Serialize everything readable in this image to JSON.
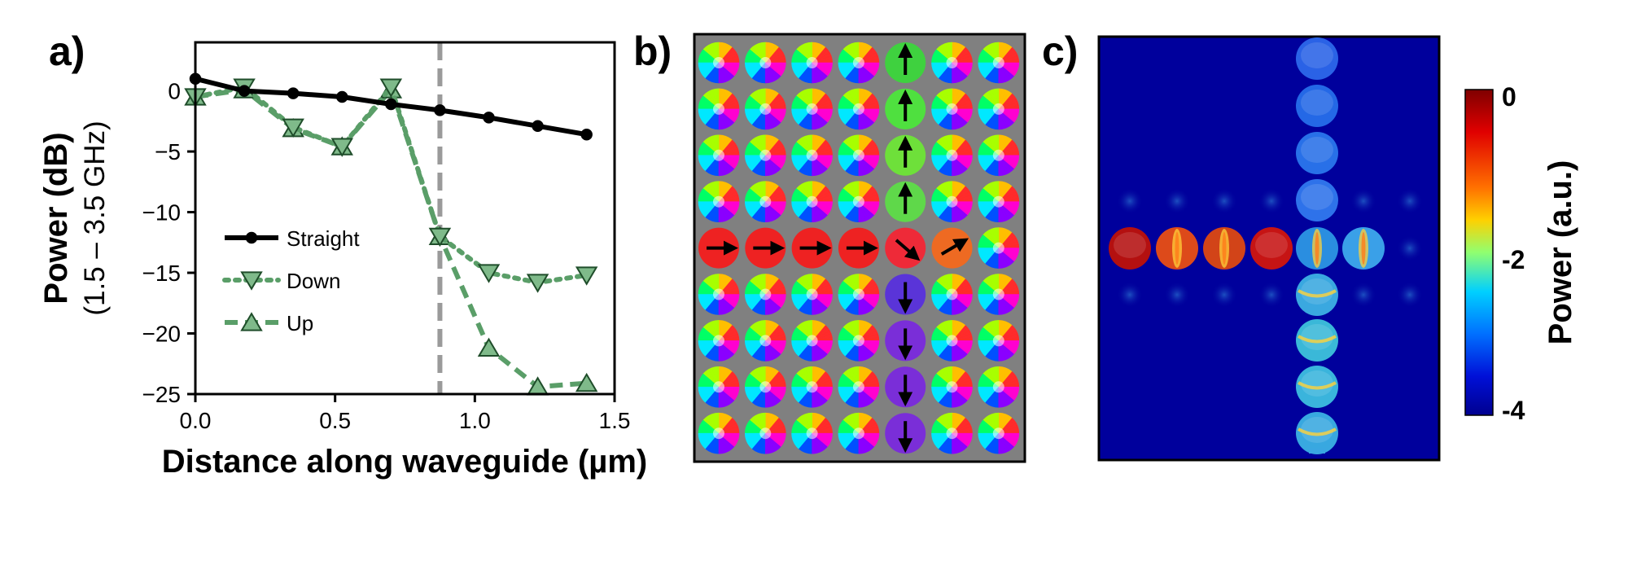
{
  "panels": {
    "a": "a)",
    "b": "b)",
    "c": "c)"
  },
  "chart_data": [
    {
      "type": "line",
      "panel": "a)",
      "xlabel": "Distance along waveguide (µm)",
      "ylabel": "Power (dB)",
      "ylabel2": "(1.5 – 3.5 GHz)",
      "xlim": [
        0,
        1.5
      ],
      "ylim": [
        -25,
        4
      ],
      "xticks": [
        0.0,
        0.5,
        1.0,
        1.5
      ],
      "xtick_labels": [
        "0.0",
        "0.5",
        "1.0",
        "1.5"
      ],
      "yticks": [
        0,
        -5,
        -10,
        -15,
        -20,
        -25
      ],
      "ytick_labels": [
        "0",
        "−5",
        "−10",
        "−15",
        "−20",
        "−25"
      ],
      "grid": false,
      "legend_position": "center-left",
      "vline_x": 0.875,
      "series": [
        {
          "name": "Straight",
          "color": "#000000",
          "style": "solid",
          "marker": "circle",
          "x": [
            0.0,
            0.175,
            0.35,
            0.525,
            0.7,
            0.875,
            1.05,
            1.225,
            1.4
          ],
          "y": [
            1.0,
            0.0,
            -0.2,
            -0.5,
            -1.1,
            -1.6,
            -2.2,
            -2.9,
            -3.6
          ]
        },
        {
          "name": "Down",
          "color": "#5a9e68",
          "style": "dotted",
          "marker": "triangle-down",
          "x": [
            0.0,
            0.175,
            0.35,
            0.525,
            0.7,
            0.875,
            1.05,
            1.225,
            1.4
          ],
          "y": [
            -0.5,
            0.3,
            -3.0,
            -4.6,
            0.3,
            -12.0,
            -15.0,
            -15.8,
            -15.2
          ]
        },
        {
          "name": "Up",
          "color": "#5a9e68",
          "style": "dashed",
          "marker": "triangle-up",
          "x": [
            0.0,
            0.175,
            0.35,
            0.525,
            0.7,
            0.875,
            1.05,
            1.225,
            1.4
          ],
          "y": [
            -0.5,
            0.1,
            -3.1,
            -4.6,
            0.1,
            -12.0,
            -21.2,
            -24.4,
            -24.1
          ]
        }
      ]
    },
    {
      "type": "heatmap",
      "panel": "c)",
      "colorbar_label": "Power (a.u.)",
      "colorbar_ticks": [
        "0",
        "-2",
        "-4"
      ],
      "colorbar_range": [
        -4,
        0
      ]
    }
  ],
  "magnet_grid": {
    "rows": 9,
    "cols": 7,
    "background": "#808080",
    "cells": [
      [
        [
          "v",
          null
        ],
        [
          "v",
          null
        ],
        [
          "v",
          null
        ],
        [
          "v",
          null
        ],
        [
          "#3fd13f",
          "up"
        ],
        [
          "v",
          null
        ],
        [
          "v",
          null
        ]
      ],
      [
        [
          "v",
          null
        ],
        [
          "v",
          null
        ],
        [
          "v",
          null
        ],
        [
          "v",
          null
        ],
        [
          "#4fe03f",
          "up"
        ],
        [
          "v",
          null
        ],
        [
          "v",
          null
        ]
      ],
      [
        [
          "v",
          null
        ],
        [
          "v",
          null
        ],
        [
          "v",
          null
        ],
        [
          "v",
          null
        ],
        [
          "#6ee03a",
          "up"
        ],
        [
          "v",
          null
        ],
        [
          "v",
          null
        ]
      ],
      [
        [
          "v",
          null
        ],
        [
          "v",
          null
        ],
        [
          "v",
          null
        ],
        [
          "v",
          null
        ],
        [
          "#5fd84a",
          "up"
        ],
        [
          "v",
          null
        ],
        [
          "v",
          null
        ]
      ],
      [
        [
          "#ee2222",
          "right"
        ],
        [
          "#ee2222",
          "right"
        ],
        [
          "#ee2222",
          "right"
        ],
        [
          "#ee2222",
          "right"
        ],
        [
          "#ee2a38",
          "down-right"
        ],
        [
          "#ee6a22",
          "up-right"
        ],
        [
          "v",
          null
        ]
      ],
      [
        [
          "v",
          null
        ],
        [
          "v",
          null
        ],
        [
          "v",
          null
        ],
        [
          "v",
          null
        ],
        [
          "#5a34d8",
          "down"
        ],
        [
          "v",
          null
        ],
        [
          "v",
          null
        ]
      ],
      [
        [
          "v",
          null
        ],
        [
          "v",
          null
        ],
        [
          "v",
          null
        ],
        [
          "v",
          null
        ],
        [
          "#7a2ed8",
          "down"
        ],
        [
          "v",
          null
        ],
        [
          "v",
          null
        ]
      ],
      [
        [
          "v",
          null
        ],
        [
          "v",
          null
        ],
        [
          "v",
          null
        ],
        [
          "v",
          null
        ],
        [
          "#7a2ed8",
          "down"
        ],
        [
          "v",
          null
        ],
        [
          "v",
          null
        ]
      ],
      [
        [
          "v",
          null
        ],
        [
          "v",
          null
        ],
        [
          "v",
          null
        ],
        [
          "v",
          null
        ],
        [
          "#7a2ed8",
          "down"
        ],
        [
          "v",
          null
        ],
        [
          "v",
          null
        ]
      ]
    ]
  },
  "power_map": {
    "background": "#00009c",
    "horizontal_row": [
      "#b41010",
      "#dd4a1a",
      "#d24418",
      "#c61414",
      "#2a8ee0",
      "#3aa0e8"
    ],
    "vertical_column": [
      "#2a62e6",
      "#2468e6",
      "#2870e8",
      "#2e72ea",
      "#2a8ee0",
      "#3aa8e0",
      "#3ab8d8",
      "#3ab4dc",
      "#38a8e0",
      "#3aa6e2"
    ]
  }
}
